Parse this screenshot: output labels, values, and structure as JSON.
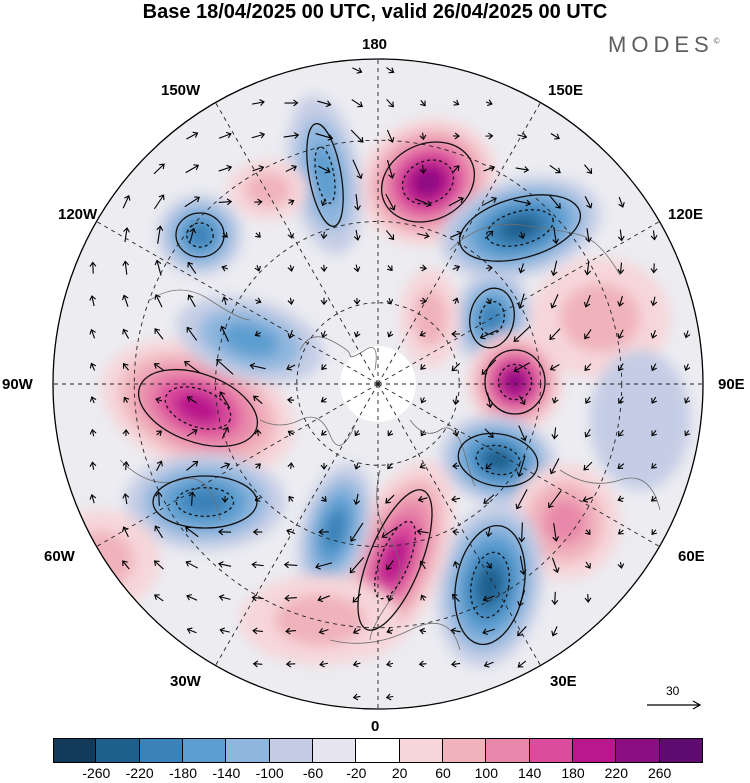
{
  "title": "Base 18/04/2025 00 UTC, valid 26/04/2025 00 UTC",
  "brand": "MODES",
  "brand_mark": "©",
  "longitude_labels": {
    "top": "180",
    "bottom": "0",
    "left": "90W",
    "right": "90E",
    "upper_left_1": "150W",
    "upper_left_2": "120W",
    "upper_right_1": "150E",
    "upper_right_2": "120E",
    "lower_left_1": "60W",
    "lower_left_2": "30W",
    "lower_right_1": "60E",
    "lower_right_2": "30E"
  },
  "reference_vector": "30",
  "colorbar": {
    "labels": [
      "-260",
      "-220",
      "-180",
      "-140",
      "-100",
      "-60",
      "-20",
      "20",
      "60",
      "100",
      "140",
      "180",
      "220",
      "260"
    ],
    "colors": [
      "#123a5a",
      "#1f5f8c",
      "#3b82b8",
      "#5d9ed0",
      "#8fb6de",
      "#c4cde5",
      "#e7e5f0",
      "#ffffff",
      "#f6d6d9",
      "#f0b2bb",
      "#e888aa",
      "#db4d9c",
      "#b9178c",
      "#8a0f82",
      "#5d0b6f"
    ]
  },
  "map": {
    "projection": "north polar stereographic",
    "negative_anomaly_color": "#3b82b8",
    "positive_anomaly_color": "#db4d9c",
    "neutral_color": "#ececf1"
  }
}
